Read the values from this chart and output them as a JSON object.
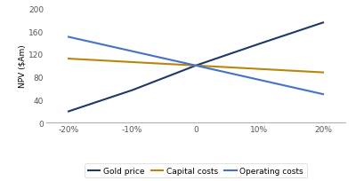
{
  "x_values": [
    -0.2,
    -0.1,
    0,
    0.1,
    0.2
  ],
  "gold_price": [
    20,
    57,
    100,
    138,
    175
  ],
  "capital_costs": [
    112,
    106,
    100,
    94,
    88
  ],
  "operating_costs": [
    150,
    125,
    100,
    75,
    50
  ],
  "gold_color": "#1F3864",
  "capital_color": "#B8860B",
  "operating_color": "#4472C4",
  "ylabel": "NPV ($Am)",
  "ylim": [
    0,
    200
  ],
  "yticks": [
    0,
    40,
    80,
    120,
    160,
    200
  ],
  "xticks": [
    -0.2,
    -0.1,
    0,
    0.1,
    0.2
  ],
  "xticklabels": [
    "-20%",
    "-10%",
    "0",
    "10%",
    "20%"
  ],
  "legend_labels": [
    "Gold price",
    "Capital costs",
    "Operating costs"
  ],
  "background_color": "#ffffff",
  "figsize": [
    4.0,
    2.05
  ],
  "dpi": 100
}
